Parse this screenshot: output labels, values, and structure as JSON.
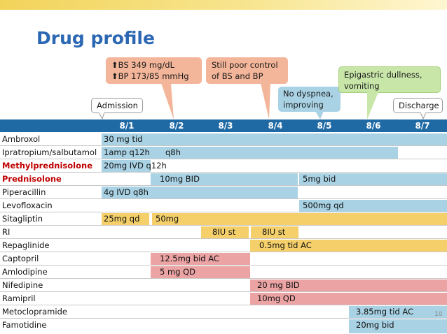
{
  "title": "Drug profile",
  "page_number": "10",
  "callouts": {
    "admission": "Admission",
    "bs_arrow_icon": "arrow-up",
    "bs": "BS 349 mg/dL",
    "bp": "BP 173/85 mmHg",
    "poor_line1": "Still poor control",
    "poor_line2": "of BS and BP",
    "dyspnea_line1": "No dyspnea,",
    "dyspnea_line2": "improving",
    "epi_line1": "Epigastric dullness,",
    "epi_line2": "vomiting",
    "discharge": "Discharge"
  },
  "dates": [
    "8/1",
    "8/2",
    "8/3",
    "8/4",
    "8/5",
    "8/6",
    "8/7"
  ],
  "drugs": [
    {
      "name": "Ambroxol",
      "red": false,
      "bars": [
        {
          "color": "blue",
          "text": "30 mg tid"
        }
      ]
    },
    {
      "name": "Ipratropium/salbutamol",
      "red": false,
      "bars": [
        {
          "color": "blue",
          "text": "1amp q12h"
        },
        {
          "color": "blue",
          "text": "q8h"
        }
      ]
    },
    {
      "name": "Methylprednisolone",
      "red": true,
      "bars": [
        {
          "color": "blue",
          "text": "20mg IVD q12h"
        }
      ]
    },
    {
      "name": "Prednisolone",
      "red": true,
      "bars": [
        {
          "color": "blue",
          "text": "10mg BID"
        },
        {
          "color": "blue",
          "text": "5mg bid"
        }
      ]
    },
    {
      "name": "Piperacillin",
      "red": false,
      "bars": [
        {
          "color": "blue",
          "text": "4g IVD q8h"
        }
      ]
    },
    {
      "name": "Levofloxacin",
      "red": false,
      "bars": [
        {
          "color": "blue",
          "text": "500mg qd"
        }
      ]
    },
    {
      "name": "Sitagliptin",
      "red": false,
      "bars": [
        {
          "color": "yellow",
          "text": "25mg qd"
        },
        {
          "color": "yellow",
          "text": "50mg"
        }
      ]
    },
    {
      "name": "RI",
      "red": false,
      "bars": [
        {
          "color": "yellow",
          "text": "8IU st"
        },
        {
          "color": "yellow",
          "text": "8IU st"
        }
      ]
    },
    {
      "name": "Repaglinide",
      "red": false,
      "bars": [
        {
          "color": "yellow",
          "text": "0.5mg tid AC"
        }
      ]
    },
    {
      "name": "Captopril",
      "red": false,
      "bars": [
        {
          "color": "pink",
          "text": "12.5mg bid AC"
        }
      ]
    },
    {
      "name": "Amlodipine",
      "red": false,
      "bars": [
        {
          "color": "pink",
          "text": "5 mg QD"
        }
      ]
    },
    {
      "name": "Nifedipine",
      "red": false,
      "bars": [
        {
          "color": "pink",
          "text": "20 mg BID"
        }
      ]
    },
    {
      "name": "Ramipril",
      "red": false,
      "bars": [
        {
          "color": "pink",
          "text": "10mg QD"
        }
      ]
    },
    {
      "name": "Metoclopramide",
      "red": false,
      "bars": [
        {
          "color": "blue",
          "text": "3.85mg tid AC"
        }
      ]
    },
    {
      "name": "Famotidine",
      "red": false,
      "bars": [
        {
          "color": "blue",
          "text": "20mg bid"
        }
      ]
    }
  ]
}
